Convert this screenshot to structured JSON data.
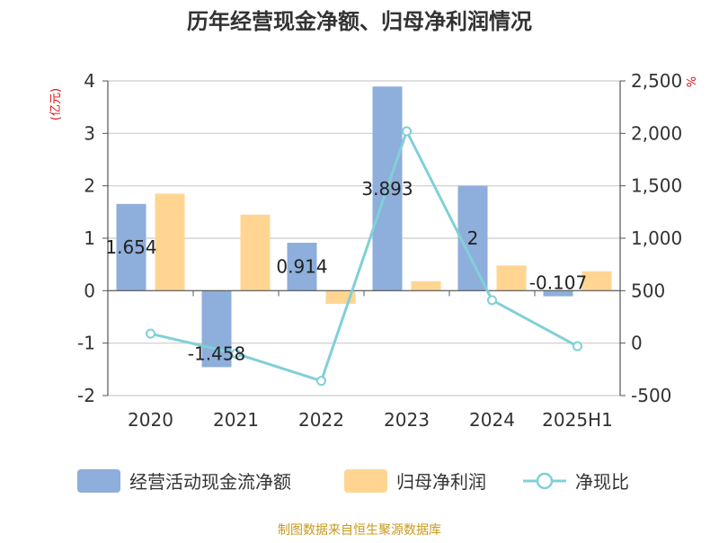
{
  "chart_data": {
    "type": "bar",
    "title": "历年经营现金净额、归母净利润情况",
    "categories": [
      "2020",
      "2021",
      "2022",
      "2023",
      "2024",
      "2025H1"
    ],
    "left_axis": {
      "unit": "(亿元)",
      "ylim": [
        -2,
        4
      ],
      "ticks": [
        "4",
        "3",
        "2",
        "1",
        "0",
        "-1",
        "-2"
      ]
    },
    "right_axis": {
      "unit": "%",
      "ylim": [
        -500,
        2500
      ],
      "ticks": [
        "2,500",
        "2,000",
        "1,500",
        "1,000",
        "500",
        "0",
        "-500"
      ]
    },
    "series": [
      {
        "name": "经营活动现金流净额",
        "type": "bar",
        "axis": "left",
        "color": "#8eaedb",
        "values": [
          1.654,
          -1.458,
          0.914,
          3.893,
          2,
          -0.107
        ],
        "labels": [
          "1.654",
          "-1.458",
          "0.914",
          "3.893",
          "2",
          "-0.107"
        ]
      },
      {
        "name": "归母净利润",
        "type": "bar",
        "axis": "left",
        "color": "#ffd591",
        "values": [
          1.85,
          1.45,
          -0.25,
          0.18,
          0.48,
          0.37
        ]
      },
      {
        "name": "净现比",
        "type": "line",
        "axis": "right",
        "color": "#80d0d8",
        "values": [
          90,
          -100,
          -360,
          2020,
          410,
          -30
        ]
      }
    ],
    "grid": true,
    "legend_position": "bottom"
  },
  "source": "制图数据来自恒生聚源数据库"
}
